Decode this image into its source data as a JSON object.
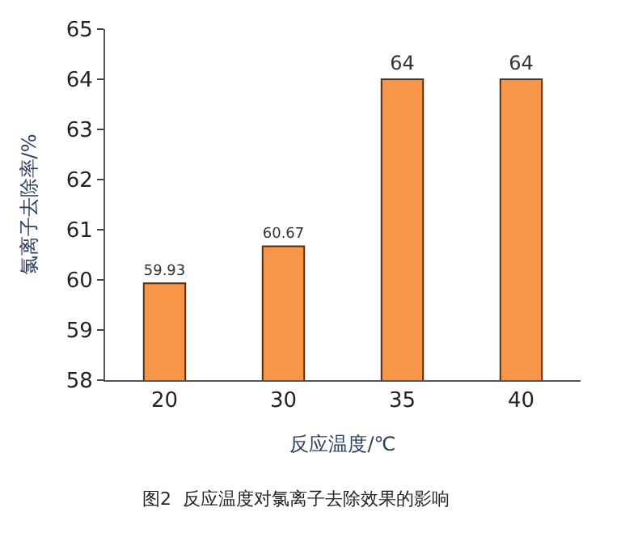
{
  "chart_data": {
    "type": "bar",
    "categories": [
      "20",
      "30",
      "35",
      "40"
    ],
    "values": [
      59.93,
      60.67,
      64,
      64
    ],
    "color": "#f79646",
    "xlabel": "反应温度/℃",
    "ylabel": "氯离子去除率/%",
    "ylim": [
      58,
      65
    ],
    "yticks": [
      58,
      59,
      60,
      61,
      62,
      63,
      64,
      65
    ],
    "data_labels": true,
    "grid": false,
    "legend": false,
    "annotations": [
      "图2  反应温度对氯离子去除效果的影响"
    ]
  }
}
